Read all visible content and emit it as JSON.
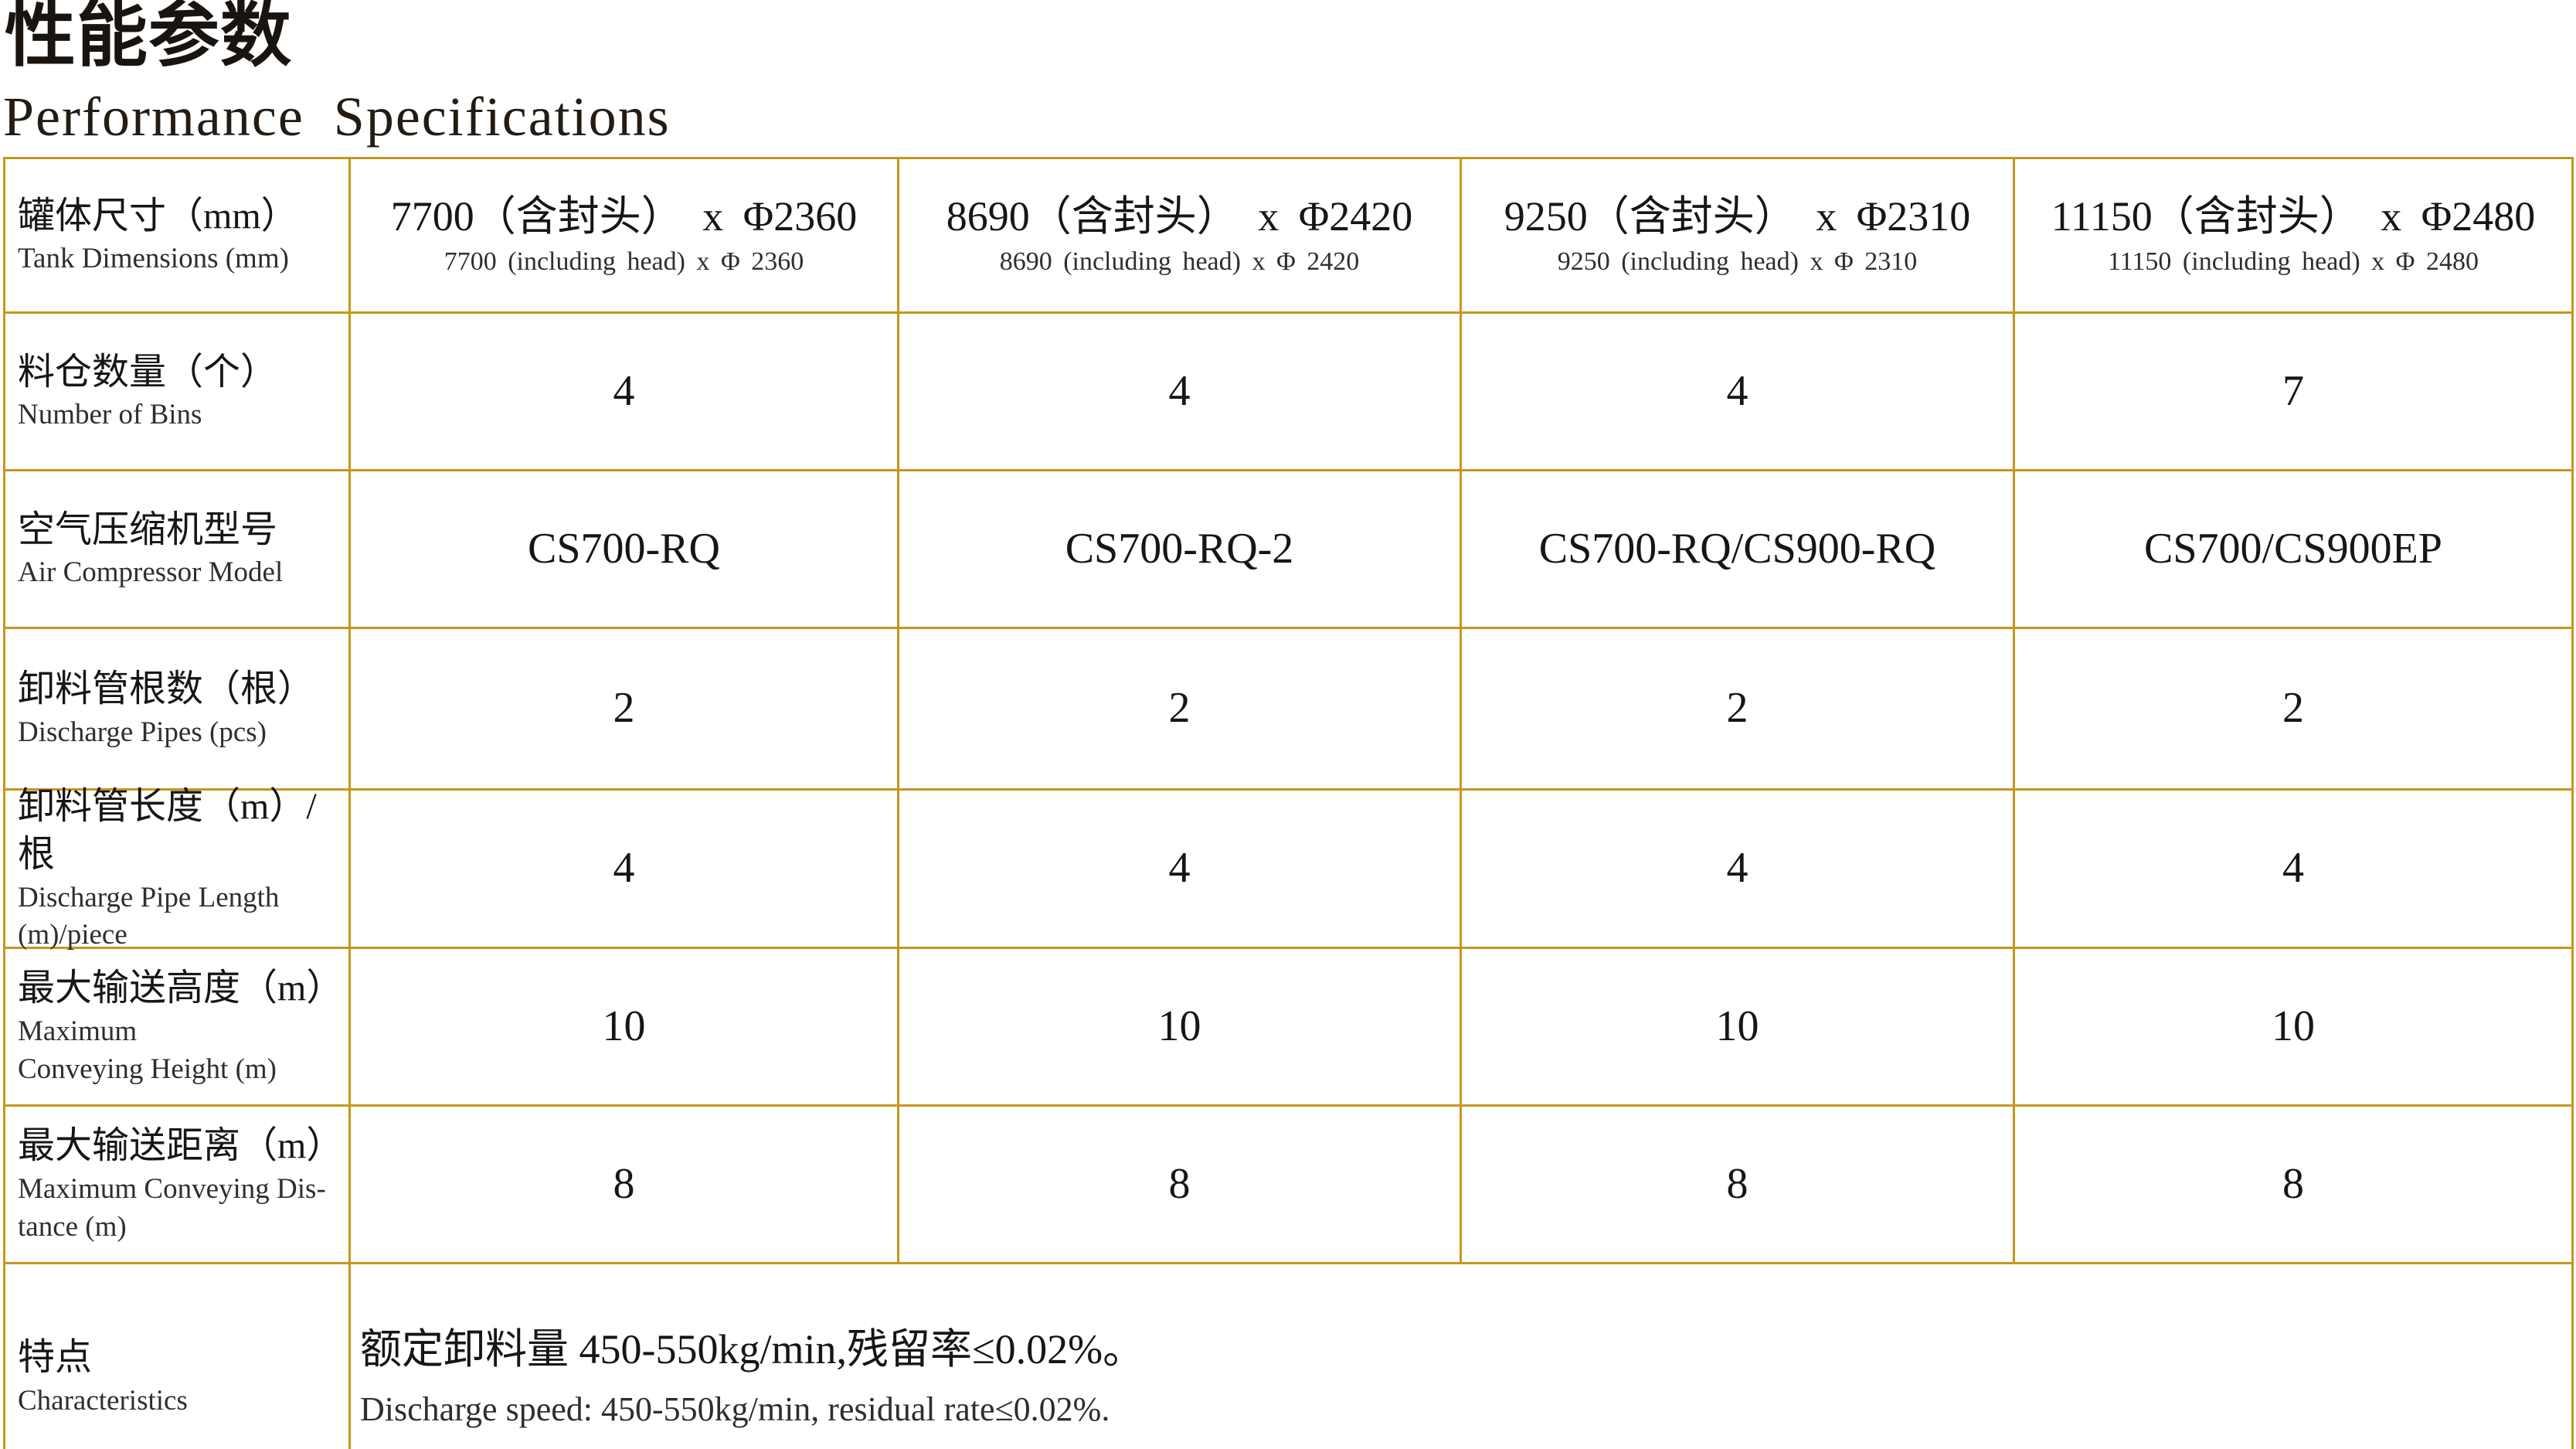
{
  "header": {
    "title_zh": "性能参数",
    "title_en": "Performance Specifications"
  },
  "theme": {
    "border_color": "#C7961E",
    "text_color": "#161616",
    "sub_text_color": "#2E2E2E",
    "background": "#FFFFFF"
  },
  "table": {
    "rows": [
      {
        "label_zh": "罐体尺寸（mm）",
        "label_en": "Tank Dimensions (mm)",
        "cells": [
          {
            "main": "7700（含封头） x Φ2360",
            "sub": "7700 (including head) x Φ 2360"
          },
          {
            "main": "8690（含封头） x Φ2420",
            "sub": "8690 (including head) x Φ 2420"
          },
          {
            "main": "9250（含封头） x Φ2310",
            "sub": "9250 (including head) x Φ 2310"
          },
          {
            "main": "11150（含封头） x Φ2480",
            "sub": "11150 (including head) x Φ 2480"
          }
        ]
      },
      {
        "label_zh": "料仓数量（个）",
        "label_en": "Number of Bins",
        "cells": [
          {
            "main": "4"
          },
          {
            "main": "4"
          },
          {
            "main": "4"
          },
          {
            "main": "7"
          }
        ]
      },
      {
        "label_zh": "空气压缩机型号",
        "label_en": "Air Compressor Model",
        "cells": [
          {
            "main": "CS700-RQ"
          },
          {
            "main": "CS700-RQ-2"
          },
          {
            "main": "CS700-RQ/CS900-RQ"
          },
          {
            "main": "CS700/CS900EP"
          }
        ]
      },
      {
        "label_zh": "卸料管根数（根）",
        "label_en": "Discharge Pipes (pcs)",
        "cells": [
          {
            "main": "2"
          },
          {
            "main": "2"
          },
          {
            "main": "2"
          },
          {
            "main": "2"
          }
        ]
      },
      {
        "label_zh": "卸料管长度（m）/根",
        "label_en": "Discharge Pipe Length\n(m)/piece",
        "cells": [
          {
            "main": "4"
          },
          {
            "main": "4"
          },
          {
            "main": "4"
          },
          {
            "main": "4"
          }
        ]
      },
      {
        "label_zh": "最大输送高度（m）",
        "label_en": "Maximum\nConveying Height (m)",
        "cells": [
          {
            "main": "10"
          },
          {
            "main": "10"
          },
          {
            "main": "10"
          },
          {
            "main": "10"
          }
        ]
      },
      {
        "label_zh": "最大输送距离（m）",
        "label_en": "Maximum Conveying Dis-\ntance (m)",
        "cells": [
          {
            "main": "8"
          },
          {
            "main": "8"
          },
          {
            "main": "8"
          },
          {
            "main": "8"
          }
        ]
      }
    ],
    "footer": {
      "label_zh": "特点",
      "label_en": "Characteristics",
      "desc_zh": "额定卸料量 450-550kg/min,残留率≤0.02%。",
      "desc_en": "Discharge speed: 450-550kg/min, residual rate≤0.02%."
    }
  }
}
